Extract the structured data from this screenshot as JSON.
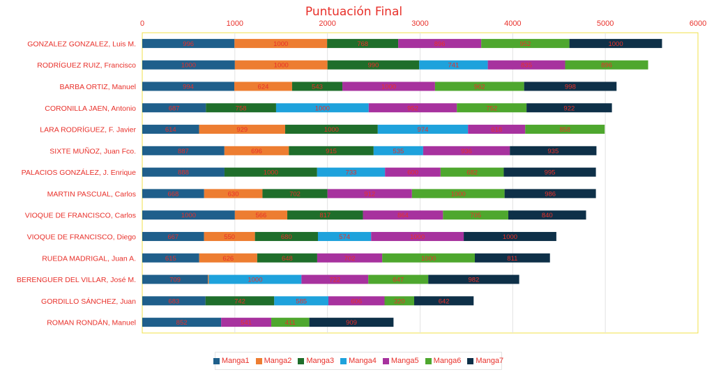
{
  "chart_data": {
    "type": "bar",
    "orientation": "horizontal",
    "stacked": true,
    "title": "Puntuación Final",
    "xlabel": "",
    "ylabel": "",
    "xlim": [
      0,
      6000
    ],
    "xticks": [
      "0",
      "1000",
      "2000",
      "3000",
      "4000",
      "5000",
      "6000"
    ],
    "grid": true,
    "legend_position": "bottom",
    "series_names": [
      "Manga1",
      "Manga2",
      "Manga3",
      "Manga4",
      "Manga5",
      "Manga6",
      "Manga7"
    ],
    "series_colors": [
      "#1f5f8b",
      "#ed7d31",
      "#1f6e2b",
      "#1ea2dc",
      "#a7329e",
      "#4ea72e",
      "#0e3048"
    ],
    "label_color": "#e8302a",
    "rows": [
      {
        "name": "GONZALEZ GONZALEZ, Luis M.",
        "segments": [
          {
            "s": 0,
            "v": 996
          },
          {
            "s": 1,
            "v": 1000
          },
          {
            "s": 2,
            "v": 768
          },
          {
            "s": 4,
            "v": 896
          },
          {
            "s": 5,
            "v": 952
          },
          {
            "s": 6,
            "v": 1000
          }
        ]
      },
      {
        "name": "RODRÍGUEZ RUIZ, Francisco",
        "segments": [
          {
            "s": 0,
            "v": 1000
          },
          {
            "s": 1,
            "v": 1000
          },
          {
            "s": 2,
            "v": 990
          },
          {
            "s": 3,
            "v": 741
          },
          {
            "s": 4,
            "v": 835
          },
          {
            "s": 5,
            "v": 896
          }
        ]
      },
      {
        "name": "BARBA ORTIZ, Manuel",
        "segments": [
          {
            "s": 0,
            "v": 994
          },
          {
            "s": 1,
            "v": 624
          },
          {
            "s": 2,
            "v": 543
          },
          {
            "s": 4,
            "v": 1000
          },
          {
            "s": 5,
            "v": 962
          },
          {
            "s": 6,
            "v": 998
          }
        ]
      },
      {
        "name": "CORONILLA JAEN, Antonio",
        "segments": [
          {
            "s": 0,
            "v": 687
          },
          {
            "s": 2,
            "v": 758
          },
          {
            "s": 3,
            "v": 1000
          },
          {
            "s": 4,
            "v": 952
          },
          {
            "s": 5,
            "v": 752
          },
          {
            "s": 6,
            "v": 922
          }
        ]
      },
      {
        "name": "LARA RODRÍGUEZ, F. Javier",
        "segments": [
          {
            "s": 0,
            "v": 614
          },
          {
            "s": 1,
            "v": 929
          },
          {
            "s": 2,
            "v": 1000
          },
          {
            "s": 3,
            "v": 974
          },
          {
            "s": 4,
            "v": 618
          },
          {
            "s": 5,
            "v": 858
          }
        ]
      },
      {
        "name": "SIXTE MUÑOZ, Juan Fco.",
        "segments": [
          {
            "s": 0,
            "v": 887
          },
          {
            "s": 1,
            "v": 696
          },
          {
            "s": 2,
            "v": 915
          },
          {
            "s": 3,
            "v": 535
          },
          {
            "s": 4,
            "v": 936
          },
          {
            "s": 6,
            "v": 935
          }
        ]
      },
      {
        "name": "PALACIOS GONZÁLEZ, J. Enrique",
        "segments": [
          {
            "s": 0,
            "v": 888
          },
          {
            "s": 2,
            "v": 1000
          },
          {
            "s": 3,
            "v": 733
          },
          {
            "s": 4,
            "v": 600
          },
          {
            "s": 5,
            "v": 682
          },
          {
            "s": 6,
            "v": 995
          }
        ]
      },
      {
        "name": "MARTIN PASCUAL, Carlos",
        "segments": [
          {
            "s": 0,
            "v": 668
          },
          {
            "s": 1,
            "v": 630
          },
          {
            "s": 2,
            "v": 702
          },
          {
            "s": 4,
            "v": 912
          },
          {
            "s": 5,
            "v": 1000
          },
          {
            "s": 6,
            "v": 986
          }
        ]
      },
      {
        "name": "VIOQUE DE FRANCISCO, Carlos",
        "segments": [
          {
            "s": 0,
            "v": 1000
          },
          {
            "s": 1,
            "v": 566
          },
          {
            "s": 2,
            "v": 817
          },
          {
            "s": 4,
            "v": 864
          },
          {
            "s": 5,
            "v": 705
          },
          {
            "s": 6,
            "v": 840
          }
        ]
      },
      {
        "name": "VIOQUE DE FRANCISCO, Diego",
        "segments": [
          {
            "s": 0,
            "v": 667
          },
          {
            "s": 1,
            "v": 550
          },
          {
            "s": 2,
            "v": 680
          },
          {
            "s": 3,
            "v": 574
          },
          {
            "s": 4,
            "v": 1000
          },
          {
            "s": 6,
            "v": 1000
          }
        ]
      },
      {
        "name": "RUEDA MADRIGAL, Juan A.",
        "segments": [
          {
            "s": 0,
            "v": 615
          },
          {
            "s": 1,
            "v": 626
          },
          {
            "s": 2,
            "v": 648
          },
          {
            "s": 4,
            "v": 702
          },
          {
            "s": 5,
            "v": 1000
          },
          {
            "s": 6,
            "v": 811
          }
        ]
      },
      {
        "name": "BERENGUER DEL VILLAR, José M.",
        "segments": [
          {
            "s": 0,
            "v": 709
          },
          {
            "s": 1,
            "v": 10
          },
          {
            "s": 3,
            "v": 1000
          },
          {
            "s": 4,
            "v": 722
          },
          {
            "s": 5,
            "v": 647
          },
          {
            "s": 6,
            "v": 982
          }
        ]
      },
      {
        "name": "GORDILLO SÁNCHEZ, Juan",
        "segments": [
          {
            "s": 0,
            "v": 683
          },
          {
            "s": 2,
            "v": 742
          },
          {
            "s": 3,
            "v": 585
          },
          {
            "s": 4,
            "v": 606
          },
          {
            "s": 5,
            "v": 320
          },
          {
            "s": 6,
            "v": 642
          }
        ]
      },
      {
        "name": "ROMAN RONDÁN, Manuel",
        "segments": [
          {
            "s": 0,
            "v": 852
          },
          {
            "s": 4,
            "v": 541
          },
          {
            "s": 5,
            "v": 411
          },
          {
            "s": 6,
            "v": 909
          }
        ]
      }
    ]
  }
}
